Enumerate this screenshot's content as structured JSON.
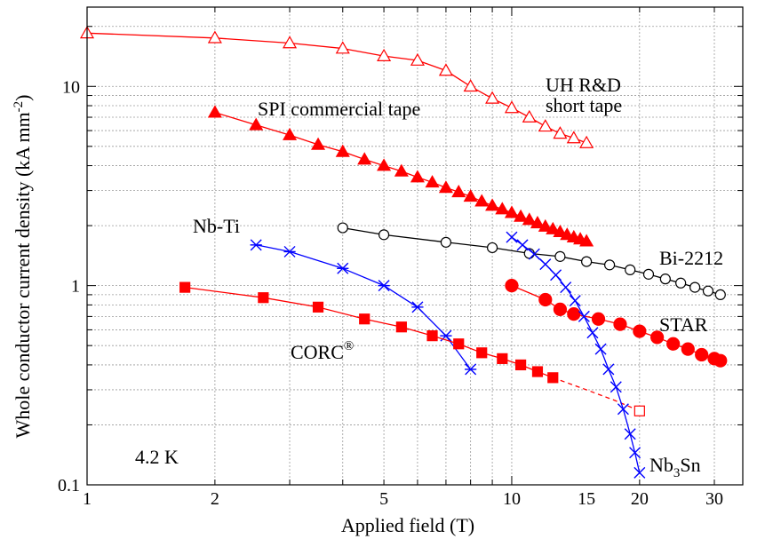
{
  "chart_data": {
    "type": "line",
    "xlabel": "Applied field (T)",
    "ylabel_main": "Whole conductor current density (kA mm",
    "ylabel_sup": "-2",
    "ylabel_end": ")",
    "xscale": "log",
    "yscale": "log",
    "xlim": [
      1,
      35
    ],
    "ylim": [
      0.1,
      25
    ],
    "grid": true,
    "x_ticks": [
      {
        "value": 1,
        "label": "1"
      },
      {
        "value": 2,
        "label": "2"
      },
      {
        "value": 5,
        "label": "5"
      },
      {
        "value": 10,
        "label": "10"
      },
      {
        "value": 15,
        "label": "15"
      },
      {
        "value": 20,
        "label": "20"
      },
      {
        "value": 30,
        "label": "30"
      }
    ],
    "y_ticks": [
      {
        "value": 0.1,
        "label": "0.1"
      },
      {
        "value": 1,
        "label": "1"
      },
      {
        "value": 10,
        "label": "10"
      }
    ],
    "annotations": {
      "temperature": "4.2 K",
      "uh_line1": "UH R&D",
      "uh_line2": "short tape",
      "spi": "SPI commercial tape",
      "nbti": "Nb-Ti",
      "bi2212": "Bi-2212",
      "star": "STAR",
      "corc": "CORC",
      "corc_sup": "®",
      "nb3sn_main": "Nb",
      "nb3sn_sub": "3",
      "nb3sn_end": "Sn"
    },
    "series": [
      {
        "id": "uh",
        "color": "#ff0000",
        "marker": "triangle-open",
        "line": "solid",
        "x": [
          1,
          2,
          3,
          4,
          5,
          6,
          7,
          8,
          9,
          10,
          11,
          12,
          13,
          14,
          15
        ],
        "y": [
          18.5,
          17.5,
          16.5,
          15.5,
          14.2,
          13.5,
          12.0,
          10.0,
          8.7,
          7.8,
          7.0,
          6.3,
          5.8,
          5.5,
          5.2
        ]
      },
      {
        "id": "spi",
        "color": "#ff0000",
        "marker": "triangle-filled",
        "line": "solid",
        "x": [
          2,
          2.5,
          3,
          3.5,
          4,
          4.5,
          5,
          5.5,
          6,
          6.5,
          7,
          7.5,
          8,
          8.5,
          9,
          9.5,
          10,
          10.5,
          11,
          11.5,
          12,
          12.5,
          13,
          13.5,
          14,
          14.5,
          15
        ],
        "y": [
          7.4,
          6.4,
          5.7,
          5.1,
          4.7,
          4.3,
          4.0,
          3.75,
          3.5,
          3.3,
          3.1,
          2.95,
          2.8,
          2.65,
          2.52,
          2.42,
          2.32,
          2.22,
          2.14,
          2.06,
          1.98,
          1.92,
          1.86,
          1.8,
          1.75,
          1.71,
          1.67
        ]
      },
      {
        "id": "bi2212",
        "color": "#000000",
        "marker": "circle-open",
        "line": "solid",
        "x": [
          4,
          5,
          7,
          9,
          11,
          13,
          15,
          17,
          19,
          21,
          23,
          25,
          27,
          29,
          31
        ],
        "y": [
          1.95,
          1.8,
          1.65,
          1.55,
          1.45,
          1.4,
          1.32,
          1.27,
          1.2,
          1.14,
          1.08,
          1.03,
          0.98,
          0.94,
          0.9
        ]
      },
      {
        "id": "nbti",
        "color": "#0000ff",
        "marker": "asterisk",
        "line": "solid",
        "x": [
          2.5,
          3,
          4,
          5,
          6,
          7,
          8
        ],
        "y": [
          1.6,
          1.48,
          1.22,
          1.0,
          0.78,
          0.56,
          0.38
        ]
      },
      {
        "id": "corc",
        "color": "#ff0000",
        "marker": "square-filled",
        "line": "solid",
        "x": [
          1.7,
          2.6,
          3.5,
          4.5,
          5.5,
          6.5,
          7.5,
          8.5,
          9.5,
          10.5,
          11.5,
          12.5
        ],
        "y": [
          0.98,
          0.87,
          0.78,
          0.68,
          0.62,
          0.56,
          0.51,
          0.46,
          0.43,
          0.4,
          0.37,
          0.345
        ]
      },
      {
        "id": "corc-extrapolated",
        "color": "#ff0000",
        "marker": "square-open-end",
        "line": "dashed",
        "x": [
          12.5,
          15,
          17.5,
          20
        ],
        "y": [
          0.345,
          0.3,
          0.265,
          0.235
        ]
      },
      {
        "id": "star",
        "color": "#ff0000",
        "marker": "circle-filled",
        "line": "solid",
        "x": [
          10,
          12,
          13,
          14,
          16,
          18,
          20,
          22,
          24,
          26,
          28,
          30,
          31
        ],
        "y": [
          1.0,
          0.85,
          0.76,
          0.72,
          0.68,
          0.64,
          0.59,
          0.55,
          0.51,
          0.48,
          0.45,
          0.43,
          0.42
        ]
      },
      {
        "id": "nb3sn",
        "color": "#0000ff",
        "marker": "x",
        "line": "solid",
        "x": [
          10,
          10.6,
          11.3,
          12,
          12.7,
          13.4,
          14.1,
          14.8,
          15.5,
          16.2,
          16.9,
          17.6,
          18.3,
          19,
          19.5,
          20
        ],
        "y": [
          1.75,
          1.6,
          1.44,
          1.28,
          1.13,
          0.98,
          0.84,
          0.7,
          0.58,
          0.48,
          0.38,
          0.31,
          0.24,
          0.18,
          0.145,
          0.115
        ]
      }
    ]
  }
}
